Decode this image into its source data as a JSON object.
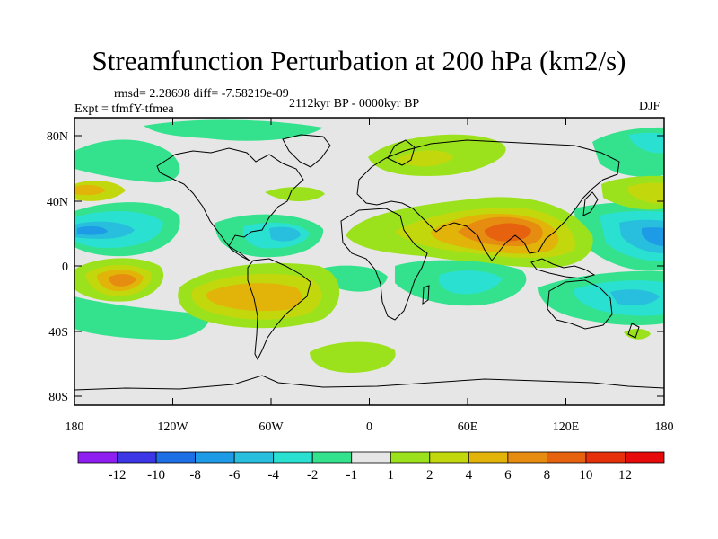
{
  "header": {
    "title": "Streamfunction Perturbation at 200 hPa (km2/s)",
    "stats": "rmsd= 2.28698 diff= -7.58219e-09",
    "experiment": "Expt = tfmfY-tfmea",
    "period": "2112kyr BP - 0000kyr BP",
    "season": "DJF"
  },
  "map": {
    "lat_ticks": [
      "80N",
      "40N",
      "0",
      "40S",
      "80S"
    ],
    "lon_ticks": [
      "180",
      "120W",
      "60W",
      "0",
      "60E",
      "120E",
      "180"
    ],
    "background_color": "#e6e6e6"
  },
  "colorbar": {
    "colors": [
      "#8f1ef0",
      "#3c36e6",
      "#1e6ee6",
      "#1e9be6",
      "#28bede",
      "#2ae0d0",
      "#34e28e",
      "#e6e6e6",
      "#9ce21c",
      "#c3d80c",
      "#e2b40a",
      "#e68c10",
      "#e6620e",
      "#e6300c",
      "#e60a0a"
    ],
    "labels": [
      "-12",
      "-10",
      "-8",
      "-6",
      "-4",
      "-2",
      "-1",
      "1",
      "2",
      "4",
      "6",
      "8",
      "10",
      "12"
    ]
  }
}
